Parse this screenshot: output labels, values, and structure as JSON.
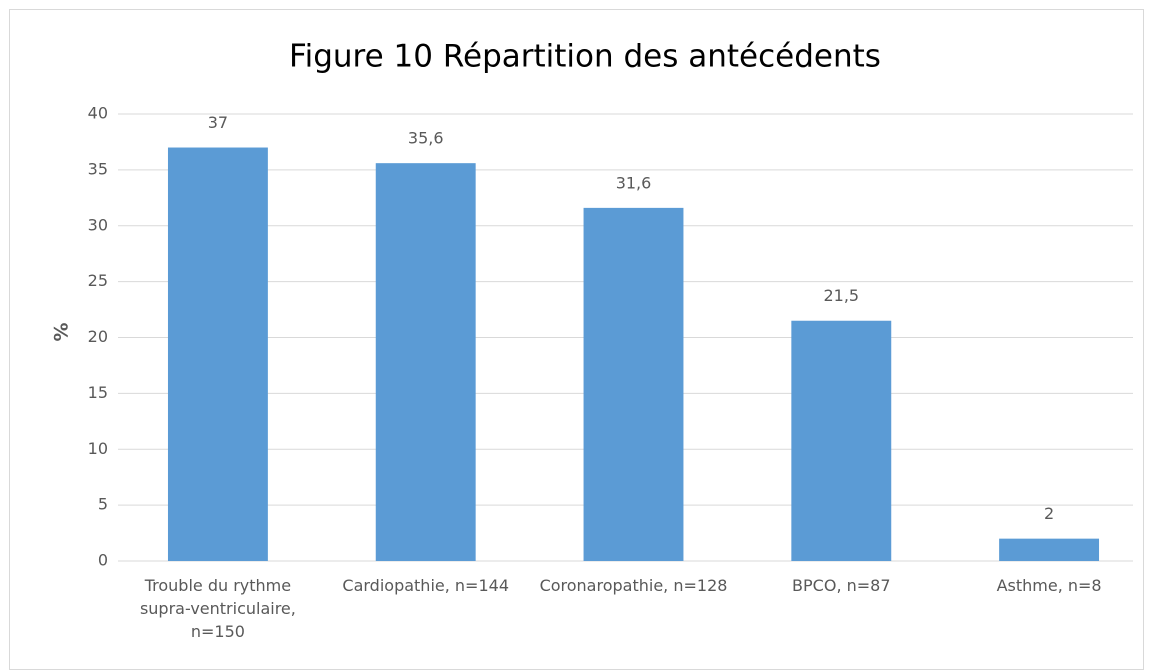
{
  "chart_data": {
    "type": "bar",
    "title": "Figure 10 Répartition des antécédents",
    "y_label": "%",
    "categories": [
      "Trouble du rythme supra-ventriculaire, n=150",
      "Cardiopathie, n=144",
      "Coronaropathie, n=128",
      "BPCO, n=87",
      "Asthme, n=8"
    ],
    "values": [
      37,
      35.6,
      31.6,
      21.5,
      2
    ],
    "value_labels": [
      "37",
      "35,6",
      "31,6",
      "21,5",
      "2"
    ],
    "color": "#5b9bd5",
    "ylim": [
      0,
      40
    ],
    "yticks": [
      0,
      5,
      10,
      15,
      20,
      25,
      30,
      35,
      40
    ],
    "grid": true
  }
}
